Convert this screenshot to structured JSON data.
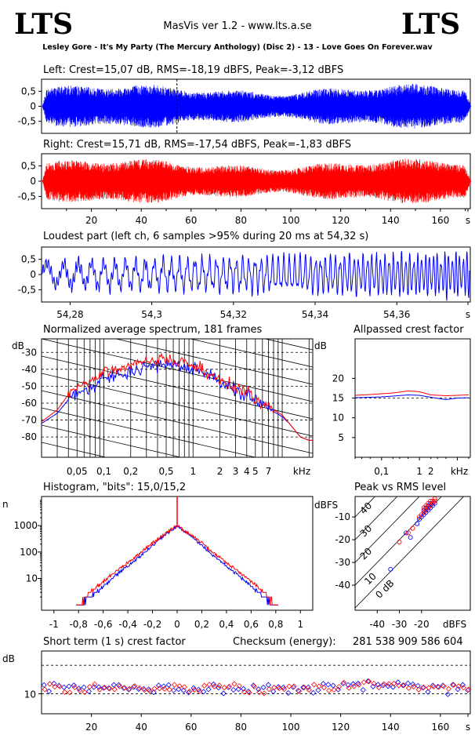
{
  "header": {
    "logo_left": "LTS",
    "logo_right": "LTS",
    "app_title": "MasVis ver 1.2 - www.lts.a.se",
    "track": "Lesley Gore - It's My Party (The Mercury Anthology) (Disc 2) - 13 - Love Goes On Forever.wav"
  },
  "colors": {
    "left": "#0000ff",
    "right": "#ff0000",
    "axis": "#000000"
  },
  "panels": {
    "left_wave": "Left: Crest=15,07 dB, RMS=-18,19 dBFS, Peak=-3,12 dBFS",
    "right_wave": "Right: Crest=15,71 dB, RMS=-17,54 dBFS, Peak=-1,83 dBFS",
    "loudest": "Loudest part (left  ch, 6 samples >95% during 20 ms at 54,32 s)",
    "spectrum": "Normalized average spectrum, 181 frames",
    "allpass": "Allpassed crest factor",
    "histogram": "Histogram, \"bits\": 15,0/15,2",
    "peak_rms": "Peak vs RMS level",
    "short_crest": "Short term (1 s) crest factor",
    "checksum_label": "Checksum (energy):",
    "checksum_value": "281 538 909 586 604"
  },
  "chart_data": [
    {
      "id": "left_waveform",
      "type": "line",
      "series": [
        {
          "name": "Left"
        }
      ],
      "ylim": [
        -0.9,
        0.9
      ],
      "xlim": [
        0,
        172
      ],
      "yticks": [
        "0,5",
        "0",
        "-0,5"
      ],
      "marker_x": 54.32,
      "envelope_note": "peak level approx 0.5 to 0.9"
    },
    {
      "id": "right_waveform",
      "type": "line",
      "series": [
        {
          "name": "Right"
        }
      ],
      "ylim": [
        -0.9,
        0.9
      ],
      "xlim": [
        0,
        172
      ],
      "yticks": [
        "0,5",
        "0",
        "-0,5"
      ],
      "xticks": [
        "20",
        "40",
        "60",
        "80",
        "100",
        "120",
        "140",
        "160",
        "s"
      ]
    },
    {
      "id": "loudest_part",
      "type": "line",
      "xlim": [
        54.273,
        54.378
      ],
      "ylim": [
        -0.9,
        0.9
      ],
      "yticks": [
        "0,5",
        "0",
        "-0,5"
      ],
      "xticks": [
        "54,28",
        "54,3",
        "54,32",
        "54,34",
        "54,36",
        "s"
      ]
    },
    {
      "id": "spectrum",
      "type": "line",
      "ylabel": "dB",
      "yticks": [
        "-30",
        "-40",
        "-50",
        "-60",
        "-70",
        "-80"
      ],
      "xticks": [
        "0,05",
        "0,1",
        "0,2",
        "0,5",
        "1",
        "2",
        "3",
        "4",
        "5",
        "7",
        "kHz"
      ],
      "x_khz": [
        0.02,
        0.03,
        0.04,
        0.05,
        0.07,
        0.1,
        0.15,
        0.2,
        0.3,
        0.5,
        0.7,
        1,
        1.5,
        2,
        3,
        4,
        5,
        6,
        7,
        8,
        10,
        12,
        16,
        20
      ],
      "series": [
        {
          "name": "left",
          "values": [
            -72,
            -66,
            -58,
            -54,
            -52,
            -45,
            -44,
            -41,
            -38,
            -36,
            -38,
            -40,
            -43,
            -47,
            -52,
            -55,
            -58,
            -60,
            -62,
            -65,
            -68,
            -72,
            -80,
            -82
          ]
        },
        {
          "name": "right",
          "values": [
            -71,
            -64,
            -55,
            -50,
            -48,
            -41,
            -40,
            -37,
            -35,
            -34,
            -36,
            -38,
            -42,
            -46,
            -51,
            -54,
            -57,
            -60,
            -61,
            -64,
            -67,
            -72,
            -80,
            -82
          ]
        }
      ]
    },
    {
      "id": "allpass_crest",
      "type": "line",
      "ylabel": "dB",
      "yticks": [
        "20",
        "15",
        "10",
        "5"
      ],
      "xticks": [
        "0,1",
        "1",
        "2",
        "kHz"
      ],
      "x_khz": [
        0.02,
        0.05,
        0.1,
        0.2,
        0.5,
        1,
        2,
        5,
        10,
        20
      ],
      "series": [
        {
          "name": "left",
          "values": [
            15.1,
            15.2,
            15.3,
            15.5,
            15.8,
            15.7,
            15.2,
            14.6,
            15.0,
            15.1
          ]
        },
        {
          "name": "right",
          "values": [
            15.7,
            15.9,
            16.1,
            16.3,
            16.8,
            16.6,
            15.8,
            15.6,
            15.7,
            15.8
          ]
        }
      ],
      "reference": 15
    },
    {
      "id": "histogram",
      "type": "line",
      "ylabel": "n",
      "yticks": [
        "1000",
        "100",
        "10"
      ],
      "xticks": [
        "-1",
        "-0,8",
        "-0,6",
        "-0,4",
        "-0,2",
        "0",
        "0,2",
        "0,4",
        "0,6",
        "0,8",
        "1"
      ],
      "x": [
        -0.8,
        -0.7,
        -0.6,
        -0.5,
        -0.4,
        -0.3,
        -0.2,
        -0.1,
        0.0,
        0.1,
        0.2,
        0.3,
        0.4,
        0.5,
        0.6,
        0.7,
        0.8
      ],
      "series": [
        {
          "name": "left",
          "values": [
            1,
            2,
            5,
            13,
            30,
            70,
            180,
            430,
            1000,
            430,
            180,
            70,
            30,
            13,
            5,
            2,
            1
          ]
        },
        {
          "name": "right",
          "values": [
            1,
            3,
            8,
            18,
            40,
            90,
            220,
            480,
            1000,
            480,
            220,
            90,
            40,
            18,
            8,
            3,
            1
          ]
        }
      ]
    },
    {
      "id": "peak_vs_rms",
      "type": "scatter",
      "ylabel": "dBFS",
      "xlabel": "dBFS",
      "yticks": [
        "-10",
        "-20",
        "-30",
        "-40"
      ],
      "xticks": [
        "-40",
        "-30",
        "-20"
      ],
      "diagonal_labels": [
        "40",
        "30",
        "20",
        "10",
        "0 dB"
      ],
      "series": [
        {
          "name": "left",
          "points": [
            [
              -34,
              -33
            ],
            [
              -27,
              -17
            ],
            [
              -25,
              -19
            ],
            [
              -22,
              -13
            ],
            [
              -21,
              -11
            ],
            [
              -20,
              -10
            ],
            [
              -19,
              -9
            ],
            [
              -19,
              -7
            ],
            [
              -18,
              -8
            ],
            [
              -18,
              -6
            ],
            [
              -17,
              -7
            ],
            [
              -17,
              -5
            ],
            [
              -16,
              -6
            ],
            [
              -16,
              -4
            ],
            [
              -15,
              -5
            ],
            [
              -15,
              -4
            ],
            [
              -14,
              -4
            ]
          ]
        },
        {
          "name": "right",
          "points": [
            [
              -30,
              -21
            ],
            [
              -26,
              -17
            ],
            [
              -24,
              -15
            ],
            [
              -21,
              -10
            ],
            [
              -20,
              -9
            ],
            [
              -19,
              -8
            ],
            [
              -19,
              -6
            ],
            [
              -18,
              -7
            ],
            [
              -18,
              -5
            ],
            [
              -17,
              -6
            ],
            [
              -17,
              -4
            ],
            [
              -16,
              -5
            ],
            [
              -16,
              -3
            ],
            [
              -15,
              -4
            ],
            [
              -15,
              -3
            ],
            [
              -14,
              -3
            ],
            [
              -14,
              -2
            ]
          ]
        }
      ]
    },
    {
      "id": "short_term_crest",
      "type": "scatter",
      "ylabel": "dB",
      "yticks": [
        "10"
      ],
      "reference_lines": [
        10,
        20
      ],
      "xlim": [
        0,
        172
      ],
      "xticks": [
        "20",
        "40",
        "60",
        "80",
        "100",
        "120",
        "140",
        "160",
        "s"
      ]
    }
  ]
}
